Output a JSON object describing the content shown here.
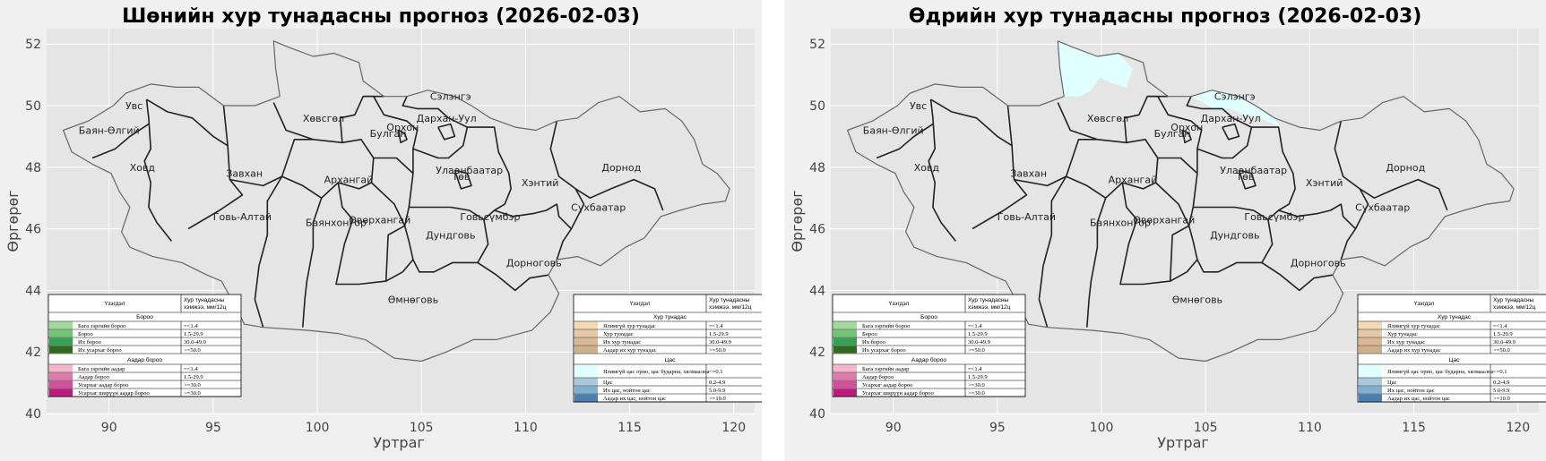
{
  "colors": {
    "panel_bg": "#f0f0f0",
    "plot_bg": "#e5e5e5",
    "grid": "#ffffff",
    "boundary_outer": "#666666",
    "boundary_inner": "#222222",
    "snow_light": "#e0ffff",
    "rain_light": "#a1d99b",
    "rain": "#74c476",
    "rain_heavy": "#31a354",
    "rain_veryheavy": "#2f6b1f",
    "sleet_light": "#f4b6c8",
    "sleet": "#e07aa8",
    "sleet_heavy": "#d0509a",
    "sleet_veryheavy": "#c0187f",
    "precip_light": "#f4d9b5",
    "precip": "#e8c8a4",
    "precip_heavy": "#d9b893",
    "precip_veryheavy": "#cfae8a",
    "snow": "#a8c8dc",
    "snow_heavy": "#80afd0",
    "snow_veryheavy": "#4a80b0"
  },
  "axes": {
    "xlabel": "Уртраг",
    "ylabel": "Өргөрөг",
    "xticks": [
      "90",
      "95",
      "100",
      "105",
      "110",
      "115",
      "120"
    ],
    "yticks": [
      "40",
      "42",
      "44",
      "46",
      "48",
      "50",
      "52"
    ],
    "xlim": [
      87,
      121
    ],
    "ylim": [
      40,
      52.5
    ]
  },
  "provinces": [
    {
      "name": "Увс",
      "lon": 91.2,
      "lat": 50.0
    },
    {
      "name": "Баян-Өлгий",
      "lon": 90.0,
      "lat": 49.2
    },
    {
      "name": "Ховд",
      "lon": 91.6,
      "lat": 48.0
    },
    {
      "name": "Завхан",
      "lon": 96.5,
      "lat": 47.8
    },
    {
      "name": "Говь-Алтай",
      "lon": 96.4,
      "lat": 46.4
    },
    {
      "name": "Хөвсгөл",
      "lon": 100.3,
      "lat": 49.6
    },
    {
      "name": "Архангай",
      "lon": 101.5,
      "lat": 47.6
    },
    {
      "name": "Баянхонгор",
      "lon": 100.9,
      "lat": 46.2
    },
    {
      "name": "Өвөрхангай",
      "lon": 103.0,
      "lat": 46.3
    },
    {
      "name": "Булган",
      "lon": 103.4,
      "lat": 49.1
    },
    {
      "name": "Орхон",
      "lon": 104.1,
      "lat": 49.3
    },
    {
      "name": "Сэлэнгэ",
      "lon": 106.4,
      "lat": 50.3
    },
    {
      "name": "Дархан-Уул",
      "lon": 106.2,
      "lat": 49.6
    },
    {
      "name": "Улаанбаатар",
      "lon": 107.3,
      "lat": 47.9
    },
    {
      "name": "Төв",
      "lon": 106.9,
      "lat": 47.7
    },
    {
      "name": "Хэнтий",
      "lon": 110.7,
      "lat": 47.5
    },
    {
      "name": "Дорнод",
      "lon": 114.6,
      "lat": 48.0
    },
    {
      "name": "Сүхбаатар",
      "lon": 113.5,
      "lat": 46.7
    },
    {
      "name": "Говьсүмбэр",
      "lon": 108.3,
      "lat": 46.4
    },
    {
      "name": "Дундговь",
      "lon": 106.4,
      "lat": 45.8
    },
    {
      "name": "Дорноговь",
      "lon": 110.4,
      "lat": 44.9
    },
    {
      "name": "Өмнөговь",
      "lon": 104.6,
      "lat": 43.7
    }
  ],
  "legend_left": {
    "header_col1": "Үзэгдэл",
    "header_col2a": "Хур тунадасны",
    "header_col2b": "хэмжээ, мм/12ц",
    "section1": "Бороо",
    "section1_items": [
      {
        "label": "Бага зэргийн бороо",
        "value": "=<1.4",
        "color_key": "rain_light"
      },
      {
        "label": "Бороо",
        "value": "1.5-29.9",
        "color_key": "rain"
      },
      {
        "label": "Их бороо",
        "value": "30.0-49.9",
        "color_key": "rain_heavy"
      },
      {
        "label": "Их усархаг бороо",
        "value": ">=50.0",
        "color_key": "rain_veryheavy"
      }
    ],
    "section2": "Аадар бороо",
    "section2_items": [
      {
        "label": "Бага зэргийн аадар",
        "value": "=<1.4",
        "color_key": "sleet_light"
      },
      {
        "label": "Аадар бороо",
        "value": "1.5-29.9",
        "color_key": "sleet"
      },
      {
        "label": "Усархаг аадар бороо",
        "value": ">=30.0",
        "color_key": "sleet_heavy"
      },
      {
        "label": "Усархаг ширүүн аадар бороо",
        "value": ">=30.0",
        "color_key": "sleet_veryheavy"
      }
    ]
  },
  "legend_right": {
    "header_col1": "Үзэгдэл",
    "header_col2a": "Хур тунадасны",
    "header_col2b": "хэмжээ, мм/12ц",
    "section1": "Хур тунадас",
    "section1_items": [
      {
        "label": "Ялимгүй хур тунадас",
        "value": "=<1.4",
        "color_key": "precip_light"
      },
      {
        "label": "Хур тунадас",
        "value": "1.5-29.9",
        "color_key": "precip"
      },
      {
        "label": "Их хур тунадас",
        "value": "30.0-49.9",
        "color_key": "precip_heavy"
      },
      {
        "label": "Аадар их хур тунадас",
        "value": ">=50.0",
        "color_key": "precip_veryheavy"
      }
    ],
    "section2": "Цас",
    "section2_items": [
      {
        "label": "Ялимгүй цас орно, цас бударна, хялмаална",
        "value": "<=0.1",
        "color_key": "snow_light"
      },
      {
        "label": "Цас",
        "value": "0.2-4.9",
        "color_key": "snow"
      },
      {
        "label": "Их цас, нойтон цас",
        "value": "5.0-9.9",
        "color_key": "snow_heavy"
      },
      {
        "label": "Аадар их цас, нойтон цас",
        "value": ">=10.0",
        "color_key": "snow_veryheavy"
      }
    ]
  },
  "panels": [
    {
      "id": "night",
      "title": "Шөнийн хур тунадасны прогноз (2026-02-03)",
      "snow_regions": []
    },
    {
      "id": "day",
      "title": "Өдрийн хур тунадасны прогноз (2026-02-03)",
      "snow_regions": [
        "khuvsgul-north",
        "selenge-north"
      ]
    }
  ]
}
